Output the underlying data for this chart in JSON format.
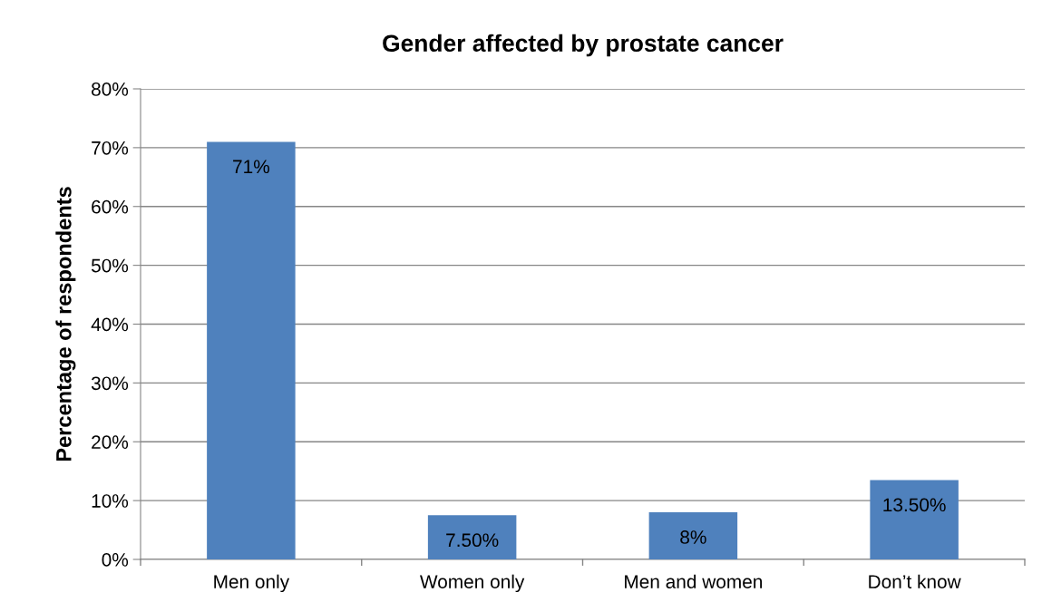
{
  "chart_data": {
    "type": "bar",
    "title": "Gender affected by prostate cancer",
    "ylabel": "Percentage of respondents",
    "categories": [
      "Men only",
      "Women only",
      "Men and women",
      "Don’t know"
    ],
    "values": [
      71,
      7.5,
      8,
      13.5
    ],
    "color": "#4f81bd",
    "value_labels": [
      "71%",
      "7.50%",
      "8%",
      "13.50%"
    ],
    "ylim": [
      0,
      80
    ],
    "yticks": [
      {
        "value": 0,
        "label": "0%"
      },
      {
        "value": 10,
        "label": "10%"
      },
      {
        "value": 20,
        "label": "20%"
      },
      {
        "value": 30,
        "label": "30%"
      },
      {
        "value": 40,
        "label": "40%"
      },
      {
        "value": 50,
        "label": "50%"
      },
      {
        "value": 60,
        "label": "60%"
      },
      {
        "value": 70,
        "label": "70%"
      },
      {
        "value": 80,
        "label": "80%"
      }
    ],
    "grid": "y"
  }
}
